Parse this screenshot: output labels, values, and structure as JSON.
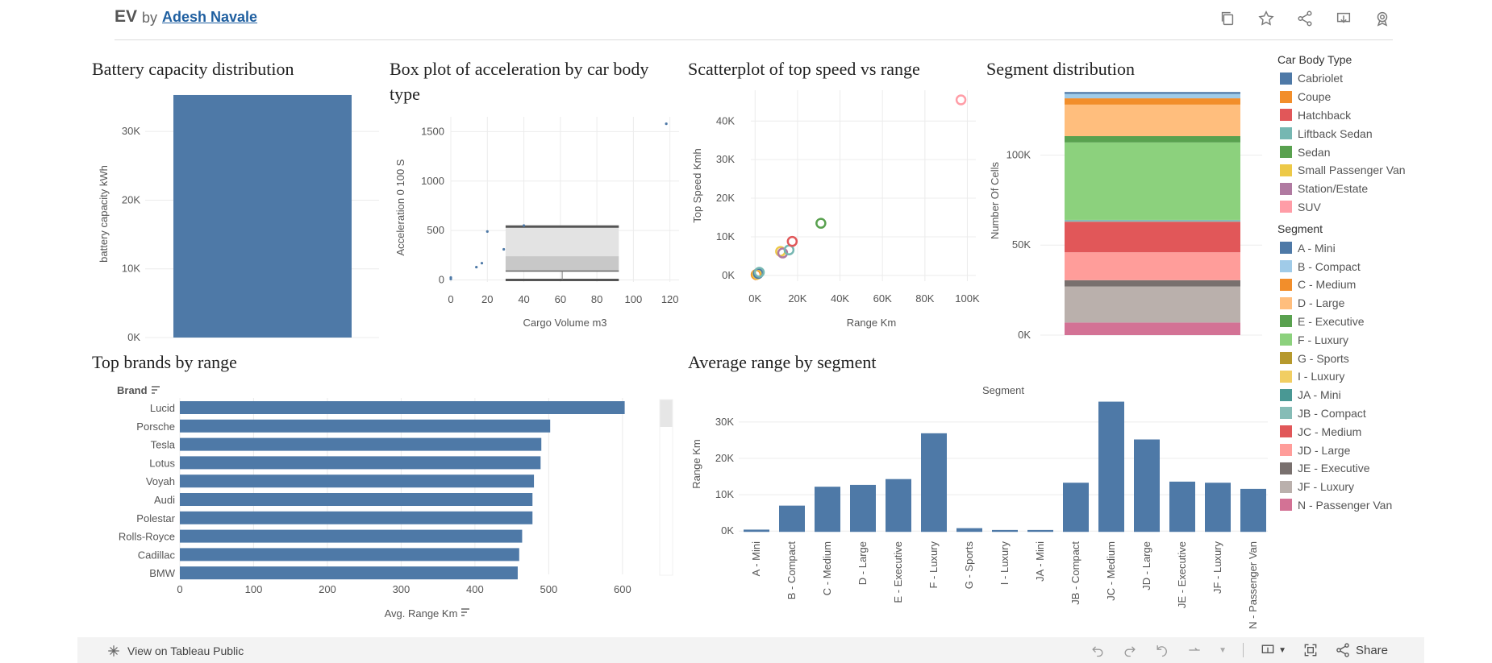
{
  "header": {
    "title": "EV",
    "by": "by",
    "author": "Adesh Navale"
  },
  "legend": {
    "body_title": "Car Body Type",
    "body_items": [
      {
        "label": "Cabriolet",
        "color": "#4e79a7"
      },
      {
        "label": "Coupe",
        "color": "#f28e2b"
      },
      {
        "label": "Hatchback",
        "color": "#e15759"
      },
      {
        "label": "Liftback Sedan",
        "color": "#76b7b2"
      },
      {
        "label": "Sedan",
        "color": "#59a14f"
      },
      {
        "label": "Small Passenger Van",
        "color": "#edc948"
      },
      {
        "label": "Station/Estate",
        "color": "#b07aa1"
      },
      {
        "label": "SUV",
        "color": "#ff9da7"
      }
    ],
    "segment_title": "Segment",
    "segment_items": [
      {
        "label": "A - Mini",
        "color": "#4e79a7"
      },
      {
        "label": "B - Compact",
        "color": "#a0cbe8"
      },
      {
        "label": "C - Medium",
        "color": "#f28e2b"
      },
      {
        "label": "D - Large",
        "color": "#ffbe7d"
      },
      {
        "label": "E - Executive",
        "color": "#59a14f"
      },
      {
        "label": "F - Luxury",
        "color": "#8cd17d"
      },
      {
        "label": "G - Sports",
        "color": "#b6992d"
      },
      {
        "label": "I - Luxury",
        "color": "#f1ce63"
      },
      {
        "label": "JA - Mini",
        "color": "#499894"
      },
      {
        "label": "JB - Compact",
        "color": "#86bcb6"
      },
      {
        "label": "JC - Medium",
        "color": "#e15759"
      },
      {
        "label": "JD - Large",
        "color": "#ff9d9a"
      },
      {
        "label": "JE - Executive",
        "color": "#79706e"
      },
      {
        "label": "JF - Luxury",
        "color": "#bab0ac"
      },
      {
        "label": "N - Passenger Van",
        "color": "#d37295"
      }
    ]
  },
  "footer": {
    "view_label": "View on Tableau Public",
    "share_label": "Share"
  },
  "chart_data": [
    {
      "id": "battery",
      "type": "bar",
      "title": "Battery capacity distribution",
      "ylabel": "battery capacity kWh",
      "ylim": [
        0,
        36000
      ],
      "yticks": [
        {
          "v": 0,
          "label": "0K"
        },
        {
          "v": 10000,
          "label": "10K"
        },
        {
          "v": 20000,
          "label": "20K"
        },
        {
          "v": 30000,
          "label": "30K"
        }
      ],
      "values": [
        35300
      ],
      "color": "#4e79a7"
    },
    {
      "id": "boxplot",
      "type": "scatter",
      "title": "Box plot of acceleration by car body type",
      "xlabel": "Cargo Volume m3",
      "ylabel": "Acceleration 0 100 S",
      "xlim": [
        0,
        125
      ],
      "ylim": [
        -20,
        1650
      ],
      "xticks": [
        0,
        20,
        40,
        60,
        80,
        100,
        120
      ],
      "yticks": [
        0,
        500,
        1000,
        1500
      ],
      "points": [
        [
          0,
          10
        ],
        [
          0,
          25
        ],
        [
          14,
          130
        ],
        [
          17,
          170
        ],
        [
          20,
          490
        ],
        [
          29,
          310
        ],
        [
          40,
          550
        ],
        [
          118,
          1580
        ]
      ],
      "box": {
        "x0": 30,
        "x1": 92,
        "whisker_low": 0,
        "q1": 90,
        "median": 240,
        "q3": 540,
        "whisker_high": 540
      },
      "color": "#4e79a7"
    },
    {
      "id": "scatter",
      "type": "scatter",
      "title": "Scatterplot of top speed vs range",
      "xlabel": "Range Km",
      "ylabel": "Top Speed Kmh",
      "xlim": [
        -2000,
        104000
      ],
      "ylim": [
        -1500,
        48000
      ],
      "xticks": [
        {
          "v": 0,
          "label": "0K"
        },
        {
          "v": 20000,
          "label": "20K"
        },
        {
          "v": 40000,
          "label": "40K"
        },
        {
          "v": 60000,
          "label": "60K"
        },
        {
          "v": 80000,
          "label": "80K"
        },
        {
          "v": 100000,
          "label": "100K"
        }
      ],
      "yticks": [
        {
          "v": 0,
          "label": "0K"
        },
        {
          "v": 10000,
          "label": "10K"
        },
        {
          "v": 20000,
          "label": "20K"
        },
        {
          "v": 30000,
          "label": "30K"
        },
        {
          "v": 40000,
          "label": "40K"
        }
      ],
      "points": [
        {
          "x": 500,
          "y": 200,
          "color": "#f28e2b"
        },
        {
          "x": 1000,
          "y": 300,
          "color": "#edc948"
        },
        {
          "x": 1500,
          "y": 500,
          "color": "#4e79a7"
        },
        {
          "x": 2000,
          "y": 800,
          "color": "#76b7b2"
        },
        {
          "x": 12000,
          "y": 6200,
          "color": "#edc948"
        },
        {
          "x": 13000,
          "y": 5800,
          "color": "#b07aa1"
        },
        {
          "x": 16000,
          "y": 6600,
          "color": "#76b7b2"
        },
        {
          "x": 17500,
          "y": 8800,
          "color": "#e15759"
        },
        {
          "x": 31000,
          "y": 13500,
          "color": "#59a14f"
        },
        {
          "x": 97000,
          "y": 45500,
          "color": "#ff9da7"
        }
      ]
    },
    {
      "id": "segment",
      "type": "bar",
      "title": "Segment distribution",
      "ylabel": "Number Of Cells",
      "ylim": [
        0,
        136000
      ],
      "yticks": [
        {
          "v": 0,
          "label": "0K"
        },
        {
          "v": 50000,
          "label": "50K"
        },
        {
          "v": 100000,
          "label": "100K"
        }
      ],
      "stack": [
        {
          "name": "N - Passenger Van",
          "value": 7000,
          "color": "#d37295"
        },
        {
          "name": "JF - Luxury",
          "value": 20000,
          "color": "#bab0ac"
        },
        {
          "name": "JE - Executive",
          "value": 3500,
          "color": "#79706e"
        },
        {
          "name": "JD - Large",
          "value": 15500,
          "color": "#ff9d9a"
        },
        {
          "name": "JC - Medium",
          "value": 17000,
          "color": "#e15759"
        },
        {
          "name": "JB - Compact",
          "value": 1000,
          "color": "#86bcb6"
        },
        {
          "name": "F - Luxury",
          "value": 43000,
          "color": "#8cd17d"
        },
        {
          "name": "E - Executive",
          "value": 3500,
          "color": "#59a14f"
        },
        {
          "name": "D - Large",
          "value": 17500,
          "color": "#ffbe7d"
        },
        {
          "name": "C - Medium",
          "value": 3500,
          "color": "#f28e2b"
        },
        {
          "name": "B - Compact",
          "value": 2500,
          "color": "#a0cbe8"
        },
        {
          "name": "A - Mini",
          "value": 1000,
          "color": "#4e79a7"
        }
      ]
    },
    {
      "id": "brands",
      "type": "bar",
      "title": "Top brands by range",
      "xlabel": "Avg. Range Km",
      "ylabel": "Brand",
      "xlim": [
        0,
        645
      ],
      "xticks": [
        0,
        100,
        200,
        300,
        400,
        500,
        600
      ],
      "categories": [
        "Lucid",
        "Porsche",
        "Tesla",
        "Lotus",
        "Voyah",
        "Audi",
        "Polestar",
        "Rolls-Royce",
        "Cadillac",
        "BMW"
      ],
      "values": [
        603,
        502,
        490,
        489,
        480,
        478,
        478,
        464,
        460,
        458
      ],
      "color": "#4e79a7"
    },
    {
      "id": "avgrange",
      "type": "bar",
      "title": "Average range by segment",
      "xlabel": "Segment",
      "ylabel": "Range Km",
      "ylim": [
        -1500,
        37500
      ],
      "yticks": [
        {
          "v": 0,
          "label": "0K"
        },
        {
          "v": 10000,
          "label": "10K"
        },
        {
          "v": 20000,
          "label": "20K"
        },
        {
          "v": 30000,
          "label": "30K"
        }
      ],
      "categories": [
        "A - Mini",
        "B - Compact",
        "C - Medium",
        "D - Large",
        "E - Executive",
        "F - Luxury",
        "G - Sports",
        "I - Luxury",
        "JA - Mini",
        "JB - Compact",
        "JC - Medium",
        "JD - Large",
        "JE - Executive",
        "JF - Luxury",
        "N - Passenger Van"
      ],
      "values": [
        400,
        7000,
        12200,
        12700,
        14300,
        26900,
        800,
        300,
        300,
        13300,
        35600,
        25200,
        13600,
        13300,
        11600
      ],
      "color": "#4e79a7"
    }
  ]
}
